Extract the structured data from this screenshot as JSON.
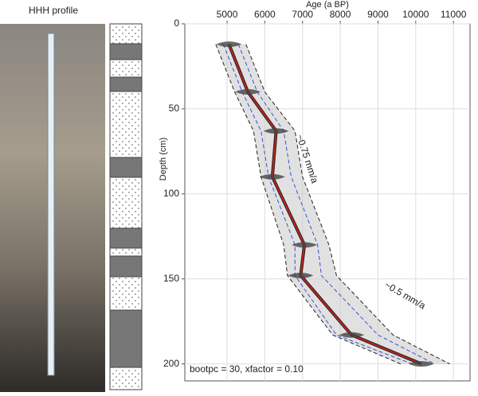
{
  "chart_data": {
    "type": "line",
    "title": "HHH profile",
    "x_label": "Age (a BP)",
    "y_label": "Depth (cm)",
    "annotations": [
      "~0.75 mm/a",
      "~0.5 mm/a",
      "bootpc = 30, xfactor = 0.10"
    ],
    "y": [
      12,
      40,
      63,
      90,
      130,
      148,
      183,
      200
    ],
    "series": [
      {
        "color": "#222222",
        "style": "dashed",
        "values": [
          4700,
          5200,
          5700,
          5900,
          6500,
          6600,
          7800,
          9600
        ]
      },
      {
        "color": "#222222",
        "style": "dashed",
        "values": [
          5500,
          6000,
          6800,
          7000,
          7700,
          7900,
          9400,
          10900
        ]
      },
      {
        "color": "#3b4fd6",
        "style": "dashed",
        "values": [
          4900,
          5400,
          5900,
          6100,
          6800,
          6800,
          7900,
          9900
        ]
      },
      {
        "color": "#3b4fd6",
        "style": "dashed",
        "values": [
          5300,
          5800,
          6500,
          6700,
          7400,
          7500,
          9000,
          10500
        ]
      },
      {
        "color": "#c0231e",
        "style": "solid",
        "values": [
          5050,
          5550,
          6300,
          6200,
          7050,
          6950,
          8300,
          10150
        ]
      }
    ],
    "xlim": [
      3880,
      11440
    ],
    "xticks": [
      5000,
      6000,
      7000,
      8000,
      9000,
      10000,
      11000
    ],
    "ylim": [
      0,
      210
    ],
    "yticks": [
      0,
      50,
      100,
      150,
      200
    ],
    "y_inverted": true,
    "x_axis_top": true,
    "grid": true
  }
}
